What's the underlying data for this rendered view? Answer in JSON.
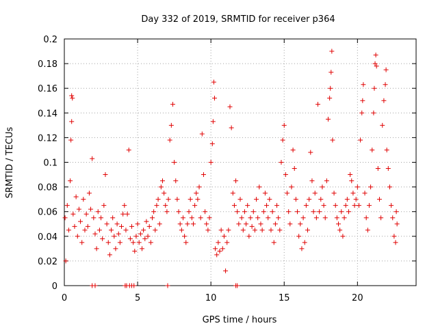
{
  "chart_data": {
    "type": "scatter",
    "title": "Day 332 of 2019, SRMTID for receiver p364",
    "xlabel": "GPS time / hours",
    "ylabel": "SRMTID / TECUs",
    "xlim": [
      0,
      24
    ],
    "ylim": [
      0,
      0.2
    ],
    "xticks": [
      0,
      5,
      10,
      15,
      20
    ],
    "xtick_labels": [
      "0",
      "5",
      "10",
      "15",
      "20"
    ],
    "yticks": [
      0,
      0.02,
      0.04,
      0.06,
      0.08,
      0.1,
      0.12,
      0.14,
      0.16,
      0.18,
      0.2
    ],
    "ytick_labels": [
      "0",
      "0.02",
      "0.04",
      "0.06",
      "0.08",
      "0.1",
      "0.12",
      "0.14",
      "0.16",
      "0.18",
      "0.2"
    ],
    "grid": true,
    "marker": "+",
    "color": "#e00000",
    "series": [
      {
        "name": "SRMTID",
        "points": [
          [
            0.05,
            0.055
          ],
          [
            0.1,
            0.02
          ],
          [
            0.2,
            0.065
          ],
          [
            0.3,
            0.045
          ],
          [
            0.4,
            0.085
          ],
          [
            0.45,
            0.118
          ],
          [
            0.5,
            0.133
          ],
          [
            0.5,
            0.154
          ],
          [
            0.55,
            0.152
          ],
          [
            0.6,
            0.058
          ],
          [
            0.7,
            0.048
          ],
          [
            0.8,
            0.072
          ],
          [
            0.9,
            0.04
          ],
          [
            1.0,
            0.062
          ],
          [
            1.1,
            0.052
          ],
          [
            1.2,
            0.035
          ],
          [
            1.3,
            0.07
          ],
          [
            1.4,
            0.045
          ],
          [
            1.5,
            0.058
          ],
          [
            1.6,
            0.048
          ],
          [
            1.7,
            0.075
          ],
          [
            1.8,
            0.062
          ],
          [
            1.9,
            0.103
          ],
          [
            2.0,
            0.055
          ],
          [
            2.1,
            0.042
          ],
          [
            2.2,
            0.03
          ],
          [
            2.3,
            0.06
          ],
          [
            2.4,
            0.045
          ],
          [
            2.5,
            0.055
          ],
          [
            2.6,
            0.038
          ],
          [
            2.7,
            0.065
          ],
          [
            2.8,
            0.09
          ],
          [
            2.9,
            0.05
          ],
          [
            3.0,
            0.035
          ],
          [
            3.1,
            0.025
          ],
          [
            3.2,
            0.045
          ],
          [
            3.3,
            0.055
          ],
          [
            3.4,
            0.04
          ],
          [
            3.5,
            0.03
          ],
          [
            3.6,
            0.05
          ],
          [
            3.7,
            0.042
          ],
          [
            3.8,
            0.035
          ],
          [
            3.9,
            0.048
          ],
          [
            4.0,
            0.058
          ],
          [
            4.1,
            0.065
          ],
          [
            4.2,
            0.045
          ],
          [
            4.3,
            0.058
          ],
          [
            4.4,
            0.11
          ],
          [
            4.5,
            0.038
          ],
          [
            4.6,
            0.048
          ],
          [
            4.7,
            0.035
          ],
          [
            4.8,
            0.028
          ],
          [
            4.9,
            0.04
          ],
          [
            5.0,
            0.05
          ],
          [
            5.1,
            0.035
          ],
          [
            5.2,
            0.042
          ],
          [
            5.3,
            0.03
          ],
          [
            5.4,
            0.045
          ],
          [
            5.5,
            0.038
          ],
          [
            5.6,
            0.052
          ],
          [
            5.7,
            0.04
          ],
          [
            5.8,
            0.048
          ],
          [
            5.9,
            0.035
          ],
          [
            6.0,
            0.055
          ],
          [
            6.1,
            0.06
          ],
          [
            6.2,
            0.045
          ],
          [
            6.3,
            0.065
          ],
          [
            6.4,
            0.07
          ],
          [
            6.5,
            0.05
          ],
          [
            6.6,
            0.08
          ],
          [
            6.7,
            0.085
          ],
          [
            6.8,
            0.075
          ],
          [
            6.9,
            0.065
          ],
          [
            7.0,
            0.06
          ],
          [
            7.1,
            0.07
          ],
          [
            7.2,
            0.118
          ],
          [
            7.3,
            0.13
          ],
          [
            7.4,
            0.147
          ],
          [
            7.5,
            0.1
          ],
          [
            7.6,
            0.085
          ],
          [
            7.7,
            0.07
          ],
          [
            7.8,
            0.06
          ],
          [
            7.9,
            0.05
          ],
          [
            8.0,
            0.045
          ],
          [
            8.1,
            0.055
          ],
          [
            8.2,
            0.04
          ],
          [
            8.3,
            0.035
          ],
          [
            8.4,
            0.05
          ],
          [
            8.5,
            0.06
          ],
          [
            8.6,
            0.07
          ],
          [
            8.7,
            0.055
          ],
          [
            8.8,
            0.05
          ],
          [
            8.9,
            0.065
          ],
          [
            9.0,
            0.075
          ],
          [
            9.1,
            0.07
          ],
          [
            9.2,
            0.08
          ],
          [
            9.3,
            0.055
          ],
          [
            9.4,
            0.123
          ],
          [
            9.5,
            0.09
          ],
          [
            9.6,
            0.06
          ],
          [
            9.7,
            0.05
          ],
          [
            9.8,
            0.045
          ],
          [
            9.9,
            0.055
          ],
          [
            10.0,
            0.1
          ],
          [
            10.1,
            0.115
          ],
          [
            10.15,
            0.133
          ],
          [
            10.2,
            0.165
          ],
          [
            10.25,
            0.152
          ],
          [
            10.3,
            0.03
          ],
          [
            10.4,
            0.025
          ],
          [
            10.5,
            0.035
          ],
          [
            10.6,
            0.028
          ],
          [
            10.7,
            0.045
          ],
          [
            10.8,
            0.03
          ],
          [
            10.9,
            0.04
          ],
          [
            11.0,
            0.012
          ],
          [
            11.1,
            0.035
          ],
          [
            11.2,
            0.045
          ],
          [
            11.3,
            0.145
          ],
          [
            11.4,
            0.128
          ],
          [
            11.5,
            0.075
          ],
          [
            11.6,
            0.065
          ],
          [
            11.7,
            0.085
          ],
          [
            11.8,
            0.06
          ],
          [
            11.9,
            0.05
          ],
          [
            12.0,
            0.07
          ],
          [
            12.1,
            0.055
          ],
          [
            12.2,
            0.045
          ],
          [
            12.3,
            0.06
          ],
          [
            12.4,
            0.05
          ],
          [
            12.5,
            0.065
          ],
          [
            12.6,
            0.04
          ],
          [
            12.7,
            0.055
          ],
          [
            12.8,
            0.048
          ],
          [
            12.9,
            0.06
          ],
          [
            13.0,
            0.045
          ],
          [
            13.1,
            0.07
          ],
          [
            13.2,
            0.055
          ],
          [
            13.3,
            0.08
          ],
          [
            13.4,
            0.05
          ],
          [
            13.5,
            0.045
          ],
          [
            13.6,
            0.06
          ],
          [
            13.7,
            0.075
          ],
          [
            13.8,
            0.065
          ],
          [
            13.9,
            0.055
          ],
          [
            14.0,
            0.07
          ],
          [
            14.1,
            0.045
          ],
          [
            14.2,
            0.06
          ],
          [
            14.3,
            0.035
          ],
          [
            14.4,
            0.05
          ],
          [
            14.5,
            0.065
          ],
          [
            14.6,
            0.055
          ],
          [
            14.7,
            0.045
          ],
          [
            14.8,
            0.1
          ],
          [
            14.9,
            0.118
          ],
          [
            15.0,
            0.13
          ],
          [
            15.1,
            0.09
          ],
          [
            15.2,
            0.075
          ],
          [
            15.3,
            0.06
          ],
          [
            15.4,
            0.05
          ],
          [
            15.5,
            0.08
          ],
          [
            15.6,
            0.11
          ],
          [
            15.7,
            0.095
          ],
          [
            15.8,
            0.07
          ],
          [
            15.9,
            0.06
          ],
          [
            16.0,
            0.04
          ],
          [
            16.1,
            0.05
          ],
          [
            16.2,
            0.03
          ],
          [
            16.3,
            0.055
          ],
          [
            16.4,
            0.035
          ],
          [
            16.5,
            0.065
          ],
          [
            16.6,
            0.045
          ],
          [
            16.7,
            0.07
          ],
          [
            16.8,
            0.108
          ],
          [
            16.9,
            0.085
          ],
          [
            17.0,
            0.06
          ],
          [
            17.1,
            0.075
          ],
          [
            17.2,
            0.055
          ],
          [
            17.3,
            0.147
          ],
          [
            17.4,
            0.06
          ],
          [
            17.5,
            0.07
          ],
          [
            17.6,
            0.08
          ],
          [
            17.7,
            0.065
          ],
          [
            17.8,
            0.055
          ],
          [
            17.9,
            0.085
          ],
          [
            18.0,
            0.135
          ],
          [
            18.1,
            0.152
          ],
          [
            18.15,
            0.16
          ],
          [
            18.2,
            0.173
          ],
          [
            18.25,
            0.19
          ],
          [
            18.3,
            0.118
          ],
          [
            18.4,
            0.075
          ],
          [
            18.5,
            0.065
          ],
          [
            18.6,
            0.055
          ],
          [
            18.7,
            0.05
          ],
          [
            18.8,
            0.045
          ],
          [
            18.9,
            0.06
          ],
          [
            19.0,
            0.04
          ],
          [
            19.1,
            0.055
          ],
          [
            19.2,
            0.065
          ],
          [
            19.3,
            0.07
          ],
          [
            19.4,
            0.06
          ],
          [
            19.5,
            0.09
          ],
          [
            19.6,
            0.085
          ],
          [
            19.7,
            0.075
          ],
          [
            19.8,
            0.065
          ],
          [
            19.9,
            0.07
          ],
          [
            20.0,
            0.08
          ],
          [
            20.1,
            0.065
          ],
          [
            20.2,
            0.118
          ],
          [
            20.3,
            0.14
          ],
          [
            20.35,
            0.15
          ],
          [
            20.4,
            0.163
          ],
          [
            20.5,
            0.075
          ],
          [
            20.6,
            0.055
          ],
          [
            20.7,
            0.045
          ],
          [
            20.8,
            0.065
          ],
          [
            20.9,
            0.08
          ],
          [
            21.0,
            0.11
          ],
          [
            21.1,
            0.14
          ],
          [
            21.15,
            0.16
          ],
          [
            21.2,
            0.18
          ],
          [
            21.25,
            0.187
          ],
          [
            21.3,
            0.178
          ],
          [
            21.4,
            0.095
          ],
          [
            21.5,
            0.07
          ],
          [
            21.6,
            0.055
          ],
          [
            21.7,
            0.13
          ],
          [
            21.8,
            0.15
          ],
          [
            21.9,
            0.163
          ],
          [
            21.95,
            0.175
          ],
          [
            22.0,
            0.11
          ],
          [
            22.1,
            0.095
          ],
          [
            22.2,
            0.08
          ],
          [
            22.3,
            0.065
          ],
          [
            22.4,
            0.055
          ],
          [
            22.5,
            0.04
          ],
          [
            22.6,
            0.035
          ],
          [
            22.65,
            0.06
          ],
          [
            22.7,
            0.05
          ]
        ]
      }
    ],
    "zero_markers_x": [
      1.9,
      2.1,
      4.15,
      4.25,
      4.45,
      4.6,
      4.75,
      7.05,
      11.7,
      11.8
    ]
  }
}
